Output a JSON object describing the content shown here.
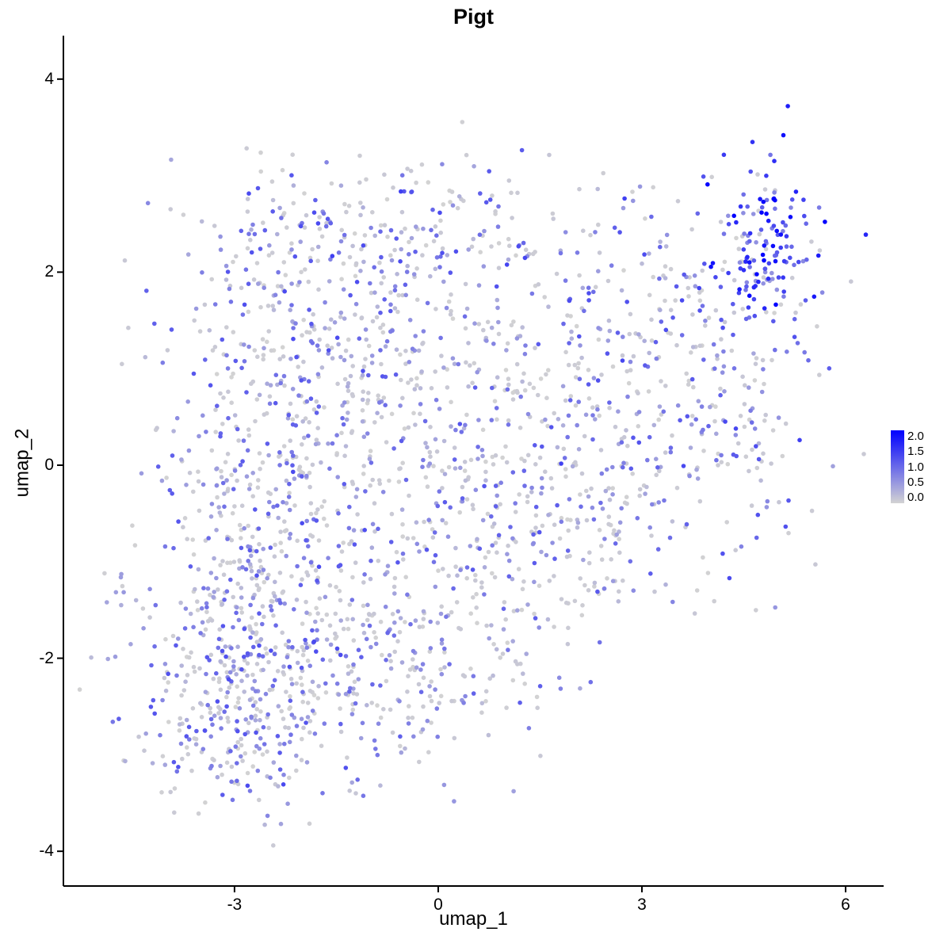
{
  "title": "Pigt",
  "chart_data": {
    "type": "scatter",
    "title": "Pigt",
    "xlabel": "umap_1",
    "ylabel": "umap_2",
    "xlim": [
      -5.52,
      6.56
    ],
    "ylim": [
      -4.36,
      4.45
    ],
    "x_ticks": [
      "-3",
      "0",
      "3",
      "6"
    ],
    "x_tick_values": [
      -3,
      0,
      3,
      6
    ],
    "y_ticks": [
      "-4",
      "-2",
      "0",
      "2",
      "4"
    ],
    "y_tick_values": [
      -4,
      -2,
      0,
      2,
      4
    ],
    "grid": false,
    "legend": {
      "position": "right",
      "tick_labels": [
        "2.0",
        "1.5",
        "1.0",
        "0.5",
        "0.0"
      ],
      "min": 0.0,
      "max": 2.0,
      "color_low": "#D3D3D3",
      "color_high": "#0000FF"
    },
    "axis_color": "#000000",
    "point_radius": 2.8,
    "seed": 42,
    "description": "UMAP feature plot of Pigt gene expression; ~2500 cells forming a diagonal blob from lower-left to upper-right, mostly light grey to medium purple, with a dense high-expression (dark blue) cluster at the top right around (4.8, 2.3).",
    "clusters": [
      {
        "cx": -2.8,
        "cy": -2.35,
        "sx": 0.85,
        "sy": 0.62,
        "n": 430,
        "grey_frac": 0.45,
        "expr_min": 0.2,
        "expr_max": 1.3
      },
      {
        "cx": -2.55,
        "cy": -0.65,
        "sx": 0.8,
        "sy": 0.85,
        "n": 310,
        "grey_frac": 0.5,
        "expr_min": 0.2,
        "expr_max": 1.2
      },
      {
        "cx": -1.95,
        "cy": 1.35,
        "sx": 0.95,
        "sy": 0.85,
        "n": 330,
        "grey_frac": 0.5,
        "expr_min": 0.2,
        "expr_max": 1.3
      },
      {
        "cx": -0.55,
        "cy": 2.5,
        "sx": 1.25,
        "sy": 0.38,
        "n": 150,
        "grey_frac": 0.5,
        "expr_min": 0.2,
        "expr_max": 1.4
      },
      {
        "cx": 0.4,
        "cy": 0.25,
        "sx": 1.2,
        "sy": 1.15,
        "n": 430,
        "grey_frac": 0.52,
        "expr_min": 0.2,
        "expr_max": 1.2
      },
      {
        "cx": -0.45,
        "cy": -1.85,
        "sx": 1.0,
        "sy": 0.7,
        "n": 230,
        "grey_frac": 0.55,
        "expr_min": 0.2,
        "expr_max": 1.1
      },
      {
        "cx": 2.2,
        "cy": -0.45,
        "sx": 0.85,
        "sy": 0.8,
        "n": 170,
        "grey_frac": 0.52,
        "expr_min": 0.2,
        "expr_max": 1.2
      },
      {
        "cx": 3.2,
        "cy": 1.2,
        "sx": 0.9,
        "sy": 0.8,
        "n": 210,
        "grey_frac": 0.5,
        "expr_min": 0.2,
        "expr_max": 1.4
      },
      {
        "cx": 4.6,
        "cy": 0.55,
        "sx": 0.5,
        "sy": 0.9,
        "n": 110,
        "grey_frac": 0.5,
        "expr_min": 0.2,
        "expr_max": 1.4
      },
      {
        "cx": 4.85,
        "cy": 2.3,
        "sx": 0.42,
        "sy": 0.42,
        "n": 140,
        "grey_frac": 0.18,
        "expr_min": 0.6,
        "expr_max": 2.0
      },
      {
        "cx": -4.75,
        "cy": -1.3,
        "sx": 0.08,
        "sy": 0.17,
        "n": 7,
        "grey_frac": 0.4,
        "expr_min": 0.3,
        "expr_max": 0.9
      }
    ]
  }
}
